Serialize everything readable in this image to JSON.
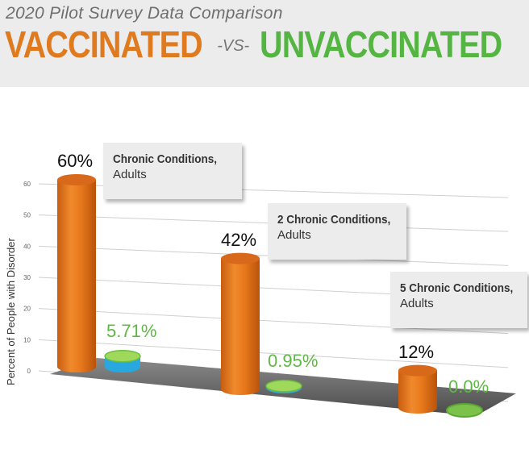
{
  "header": {
    "subtitle": "2020 Pilot Survey Data Comparison",
    "vaccinated": "VACCINATED",
    "vs": "-VS-",
    "unvaccinated": "UNVACCINATED"
  },
  "colors": {
    "vaccinated": "#e07a1e",
    "unvaccinated": "#5fb845",
    "unvaccinated_inner": "#29a8e0",
    "header_bg": "#ececec"
  },
  "chart_data": {
    "type": "bar",
    "ylabel": "Percent of People with Disorder",
    "ylim": [
      0,
      60
    ],
    "yticks": [
      "0",
      "10",
      "20",
      "30",
      "40",
      "50",
      "60"
    ],
    "categories": [
      {
        "line1": "Chronic Conditions,",
        "line2": "Adults"
      },
      {
        "line1": "2 Chronic Conditions,",
        "line2": "Adults"
      },
      {
        "line1": "5 Chronic Conditions,",
        "line2": "Adults"
      }
    ],
    "series": [
      {
        "key": "vaccinated",
        "values": [
          60,
          42,
          12
        ],
        "labels": [
          "60%",
          "42%",
          "12%"
        ]
      },
      {
        "key": "unvaccinated",
        "values": [
          5.71,
          0.95,
          0.0
        ],
        "labels": [
          "5.71%",
          "0.95%",
          "0.0%"
        ]
      }
    ],
    "grid": true
  }
}
